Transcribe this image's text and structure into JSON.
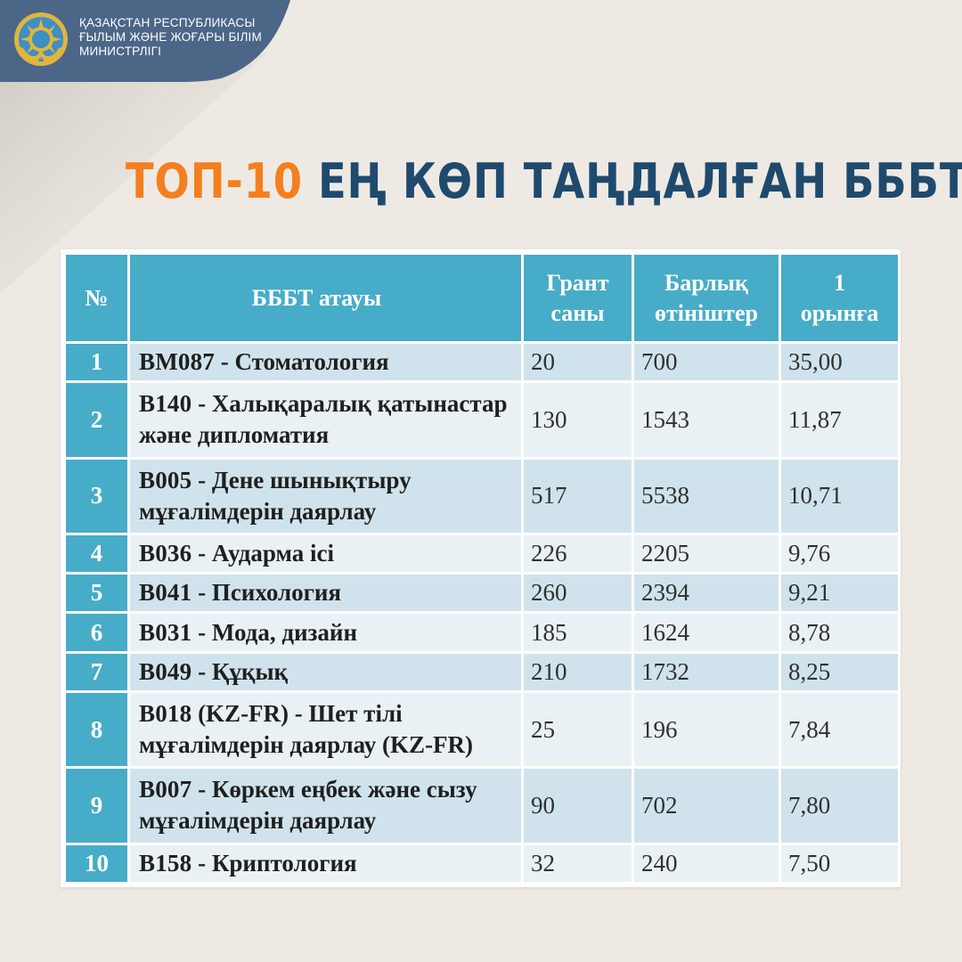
{
  "header": {
    "ministry_lines": [
      "ҚАЗАҚСТАН РЕСПУБЛИКАСЫ",
      "ҒЫЛЫМ ЖӘНЕ ЖОҒАРЫ БІЛІМ",
      "МИНИСТРЛІГІ"
    ],
    "emblem_icon": "kazakhstan-state-emblem-icon"
  },
  "headline": {
    "accent": "ТОП-10",
    "main": " ЕҢ КӨП ТАҢДАЛҒАН БББТ"
  },
  "colors": {
    "band": "#4c6688",
    "accent": "#f47f1f",
    "headline_main": "#1f4a6e",
    "table_header": "#47acc8",
    "row_dark": "#d0e3ec",
    "row_light": "#e9f1f5",
    "background": "#eeeae3"
  },
  "table": {
    "columns": [
      {
        "line1": "№",
        "line2": ""
      },
      {
        "line1": "БББТ атауы",
        "line2": ""
      },
      {
        "line1": "Грант",
        "line2": "саны"
      },
      {
        "line1": "Барлық",
        "line2": "өтініштер"
      },
      {
        "line1": "1",
        "line2": "орынға"
      }
    ],
    "rows": [
      {
        "n": "1",
        "code": "BM087",
        "sep": " - ",
        "name": "Стоматология",
        "grants": "20",
        "applications": "700",
        "per_place": "35,00"
      },
      {
        "n": "2",
        "code": "B140",
        "sep": " - ",
        "name": "Халықаралық қатынастар  және дипломатия",
        "grants": "130",
        "applications": "1543",
        "per_place": "11,87"
      },
      {
        "n": "3",
        "code": "B005",
        "sep": " - ",
        "name": "Дене шынықтыру мұғалімдерін даярлау",
        "grants": "517",
        "applications": "5538",
        "per_place": "10,71"
      },
      {
        "n": "4",
        "code": "B036",
        "sep": " - ",
        "name": "Аударма ісі",
        "grants": "226",
        "applications": "2205",
        "per_place": "9,76"
      },
      {
        "n": "5",
        "code": "B041",
        "sep": " - ",
        "name": "Психология",
        "grants": "260",
        "applications": "2394",
        "per_place": "9,21"
      },
      {
        "n": "6",
        "code": "B031",
        "sep": " - ",
        "name": "Мода, дизайн",
        "grants": "185",
        "applications": "1624",
        "per_place": "8,78"
      },
      {
        "n": "7",
        "code": "B049",
        "sep": " - ",
        "name": "Құқық",
        "grants": "210",
        "applications": "1732",
        "per_place": "8,25"
      },
      {
        "n": "8",
        "code": "B018",
        "sep": " (KZ-FR) - ",
        "name": "Шет тілі мұғалімдерін даярлау (KZ-FR)",
        "grants": "25",
        "applications": "196",
        "per_place": "7,84"
      },
      {
        "n": "9",
        "code": "B007",
        "sep": " - ",
        "name": "Көркем еңбек және сызу мұғалімдерін даярлау",
        "grants": "90",
        "applications": "702",
        "per_place": "7,80"
      },
      {
        "n": "10",
        "code": "B158",
        "sep": " - ",
        "name": "Криптология",
        "grants": "32",
        "applications": "240",
        "per_place": "7,50"
      }
    ]
  }
}
